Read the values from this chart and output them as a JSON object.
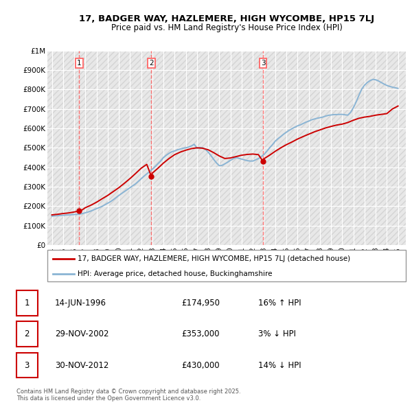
{
  "title": "17, BADGER WAY, HAZLEMERE, HIGH WYCOMBE, HP15 7LJ",
  "subtitle": "Price paid vs. HM Land Registry's House Price Index (HPI)",
  "legend_house": "17, BADGER WAY, HAZLEMERE, HIGH WYCOMBE, HP15 7LJ (detached house)",
  "legend_hpi": "HPI: Average price, detached house, Buckinghamshire",
  "footer": "Contains HM Land Registry data © Crown copyright and database right 2025.\nThis data is licensed under the Open Government Licence v3.0.",
  "sales": [
    {
      "num": 1,
      "date": "14-JUN-1996",
      "price_str": "£174,950",
      "vs_hpi": "16% ↑ HPI",
      "x_year": 1996.45
    },
    {
      "num": 2,
      "date": "29-NOV-2002",
      "price_str": "£353,000",
      "vs_hpi": "3% ↓ HPI",
      "x_year": 2002.91
    },
    {
      "num": 3,
      "date": "30-NOV-2012",
      "price_str": "£430,000",
      "vs_hpi": "14% ↓ HPI",
      "x_year": 2012.91
    }
  ],
  "ylim": [
    0,
    1000000
  ],
  "yticks": [
    0,
    100000,
    200000,
    300000,
    400000,
    500000,
    600000,
    700000,
    800000,
    900000,
    1000000
  ],
  "ytick_labels": [
    "£0",
    "£100K",
    "£200K",
    "£300K",
    "£400K",
    "£500K",
    "£600K",
    "£700K",
    "£800K",
    "£900K",
    "£1M"
  ],
  "xlim_start": 1993.6,
  "xlim_end": 2025.7,
  "background_color": "#ffffff",
  "plot_bg_color": "#e8e8e8",
  "grid_color": "#ffffff",
  "red_line_color": "#cc0000",
  "blue_line_color": "#8ab4d4",
  "dashed_red_color": "#ff6666",
  "sale_marker_color": "#cc0000",
  "hpi_x": [
    1994.0,
    1994.25,
    1994.5,
    1994.75,
    1995.0,
    1995.25,
    1995.5,
    1995.75,
    1996.0,
    1996.25,
    1996.5,
    1996.75,
    1997.0,
    1997.25,
    1997.5,
    1997.75,
    1998.0,
    1998.25,
    1998.5,
    1998.75,
    1999.0,
    1999.25,
    1999.5,
    1999.75,
    2000.0,
    2000.25,
    2000.5,
    2000.75,
    2001.0,
    2001.25,
    2001.5,
    2001.75,
    2002.0,
    2002.25,
    2002.5,
    2002.75,
    2003.0,
    2003.25,
    2003.5,
    2003.75,
    2004.0,
    2004.25,
    2004.5,
    2004.75,
    2005.0,
    2005.25,
    2005.5,
    2005.75,
    2006.0,
    2006.25,
    2006.5,
    2006.75,
    2007.0,
    2007.25,
    2007.5,
    2007.75,
    2008.0,
    2008.25,
    2008.5,
    2008.75,
    2009.0,
    2009.25,
    2009.5,
    2009.75,
    2010.0,
    2010.25,
    2010.5,
    2010.75,
    2011.0,
    2011.25,
    2011.5,
    2011.75,
    2012.0,
    2012.25,
    2012.5,
    2012.75,
    2013.0,
    2013.25,
    2013.5,
    2013.75,
    2014.0,
    2014.25,
    2014.5,
    2014.75,
    2015.0,
    2015.25,
    2015.5,
    2015.75,
    2016.0,
    2016.25,
    2016.5,
    2016.75,
    2017.0,
    2017.25,
    2017.5,
    2017.75,
    2018.0,
    2018.25,
    2018.5,
    2018.75,
    2019.0,
    2019.25,
    2019.5,
    2019.75,
    2020.0,
    2020.25,
    2020.5,
    2020.75,
    2021.0,
    2021.25,
    2021.5,
    2021.75,
    2022.0,
    2022.25,
    2022.5,
    2022.75,
    2023.0,
    2023.25,
    2023.5,
    2023.75,
    2024.0,
    2024.25,
    2024.5,
    2024.75,
    2025.0
  ],
  "hpi_y": [
    148000,
    150000,
    151000,
    152000,
    153000,
    154000,
    155000,
    156000,
    157000,
    158000,
    159000,
    162000,
    166000,
    170000,
    175000,
    181000,
    187000,
    193000,
    199000,
    207000,
    215000,
    223000,
    233000,
    244000,
    255000,
    265000,
    275000,
    285000,
    295000,
    305000,
    315000,
    328000,
    341000,
    354000,
    366000,
    377000,
    390000,
    403000,
    418000,
    432000,
    450000,
    462000,
    472000,
    480000,
    484000,
    490000,
    494000,
    498000,
    500000,
    504000,
    510000,
    518000,
    498000,
    502000,
    500000,
    492000,
    478000,
    460000,
    440000,
    422000,
    408000,
    410000,
    418000,
    426000,
    436000,
    444000,
    450000,
    446000,
    442000,
    438000,
    434000,
    432000,
    432000,
    438000,
    445000,
    454000,
    466000,
    482000,
    500000,
    516000,
    534000,
    547000,
    558000,
    570000,
    580000,
    590000,
    598000,
    606000,
    613000,
    618000,
    625000,
    632000,
    637000,
    644000,
    648000,
    652000,
    655000,
    658000,
    663000,
    667000,
    669000,
    671000,
    671000,
    672000,
    672000,
    670000,
    668000,
    682000,
    706000,
    736000,
    770000,
    802000,
    822000,
    836000,
    846000,
    852000,
    850000,
    844000,
    836000,
    828000,
    821000,
    816000,
    812000,
    809000,
    806000
  ],
  "house_x": [
    1994.0,
    1994.5,
    1995.0,
    1995.5,
    1996.0,
    1996.45,
    1996.75,
    1997.0,
    1997.5,
    1998.0,
    1998.5,
    1999.0,
    1999.5,
    2000.0,
    2000.5,
    2001.0,
    2001.5,
    2002.0,
    2002.5,
    2002.91,
    2003.0,
    2003.5,
    2004.0,
    2004.5,
    2005.0,
    2005.5,
    2006.0,
    2006.5,
    2007.0,
    2007.5,
    2008.0,
    2008.5,
    2009.0,
    2009.5,
    2010.0,
    2010.5,
    2011.0,
    2011.5,
    2012.0,
    2012.5,
    2012.91,
    2013.0,
    2013.5,
    2014.0,
    2014.5,
    2015.0,
    2015.5,
    2016.0,
    2016.5,
    2017.0,
    2017.5,
    2018.0,
    2018.5,
    2019.0,
    2019.5,
    2020.0,
    2020.5,
    2021.0,
    2021.5,
    2022.0,
    2022.5,
    2023.0,
    2023.5,
    2024.0,
    2024.5,
    2025.0
  ],
  "house_y": [
    155000,
    158000,
    162000,
    165000,
    170000,
    174950,
    182000,
    192000,
    205000,
    220000,
    238000,
    255000,
    275000,
    295000,
    318000,
    342000,
    368000,
    395000,
    415000,
    353000,
    370000,
    395000,
    422000,
    445000,
    465000,
    478000,
    488000,
    496000,
    500000,
    498000,
    490000,
    475000,
    458000,
    445000,
    448000,
    455000,
    462000,
    466000,
    468000,
    465000,
    430000,
    444000,
    462000,
    482000,
    500000,
    516000,
    530000,
    545000,
    558000,
    570000,
    582000,
    592000,
    602000,
    610000,
    617000,
    622000,
    630000,
    642000,
    652000,
    658000,
    662000,
    668000,
    672000,
    676000,
    700000,
    715000
  ]
}
